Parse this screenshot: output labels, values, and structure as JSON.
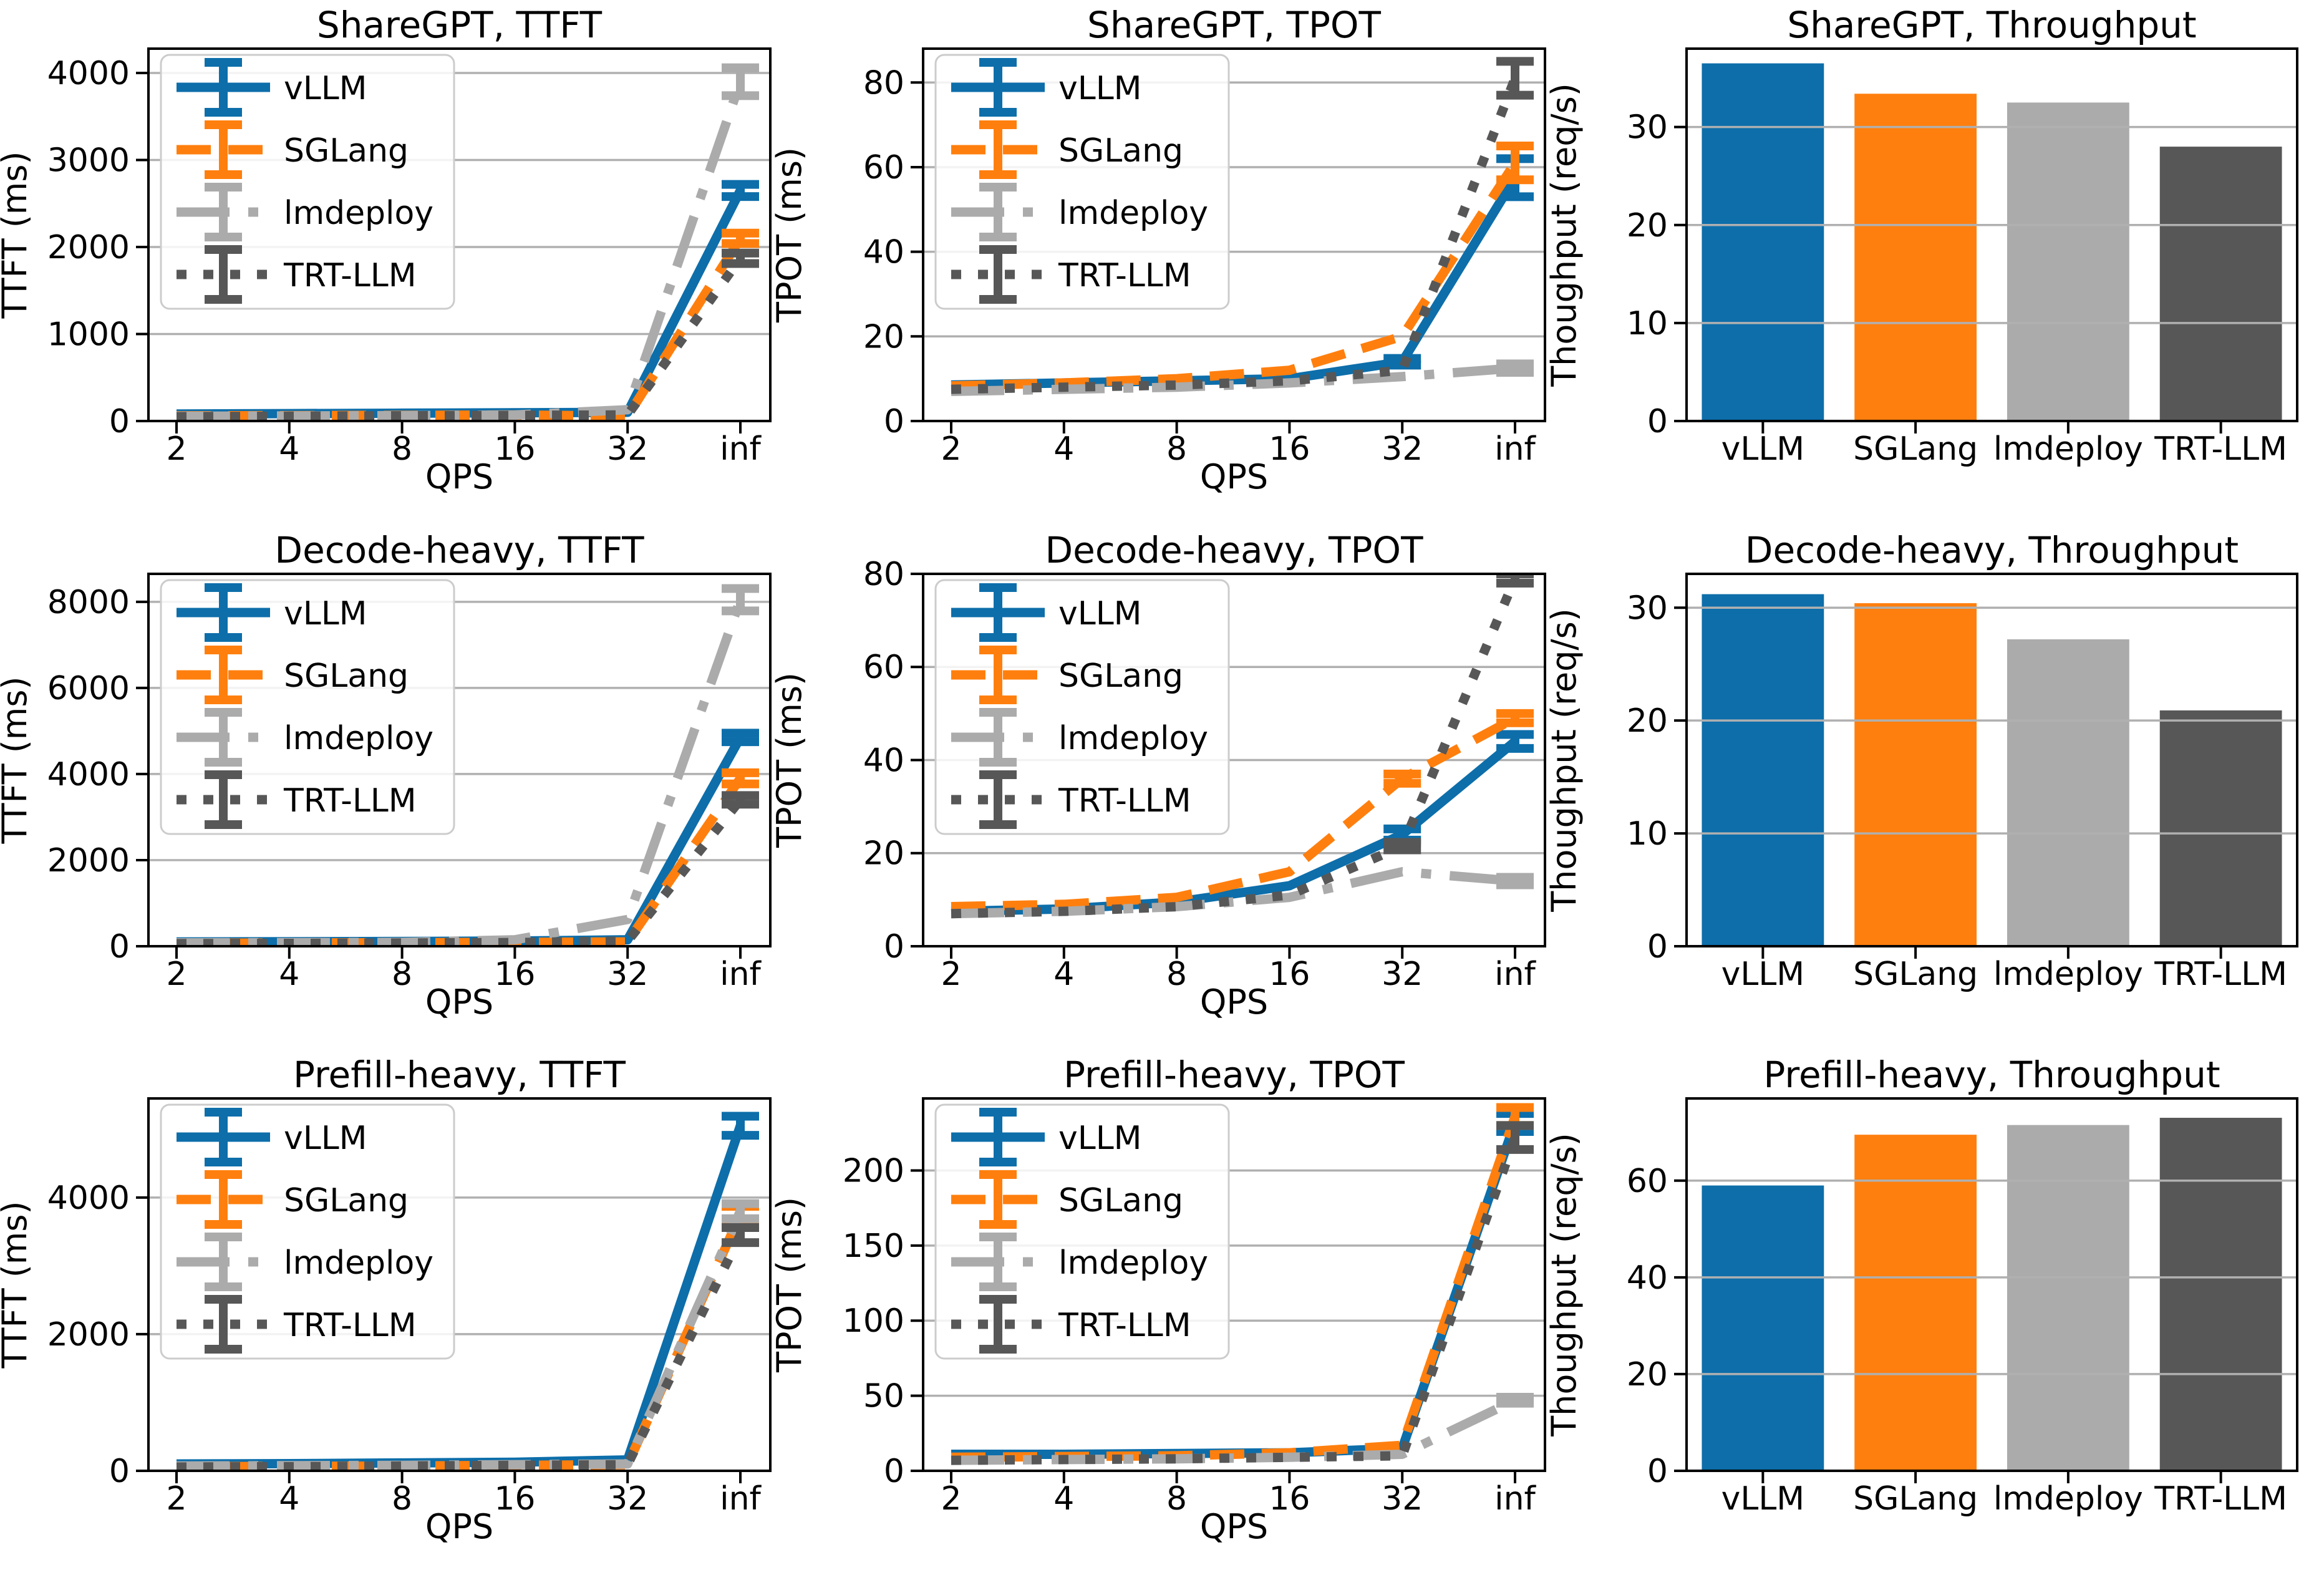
{
  "figure": {
    "background": "#ffffff",
    "grid_color": "#b0b0b0",
    "spine_color": "#000000",
    "legend_border_color": "#cccccc"
  },
  "palette": {
    "vLLM": "#0d6eaa",
    "SGLang": "#ff7f0e",
    "lmdeploy": "#ababab",
    "TRT-LLM": "#575757"
  },
  "series_styles": [
    {
      "name": "vLLM",
      "style": "solid"
    },
    {
      "name": "SGLang",
      "style": "dashed"
    },
    {
      "name": "lmdeploy",
      "style": "dashdot"
    },
    {
      "name": "TRT-LLM",
      "style": "dotted"
    }
  ],
  "chart_data": [
    {
      "type": "line",
      "title": "ShareGPT, TTFT",
      "xlabel": "QPS",
      "ylabel": "TTFT (ms)",
      "x_ticklabels": [
        "2",
        "4",
        "8",
        "16",
        "32",
        "inf"
      ],
      "yticks": [
        0,
        1000,
        2000,
        3000,
        4000
      ],
      "ylim": [
        0,
        4280
      ],
      "legend": true,
      "legend_entries": [
        "vLLM",
        "SGLang",
        "lmdeploy",
        "TRT-LLM"
      ],
      "series": [
        {
          "name": "vLLM",
          "values": [
            80,
            85,
            90,
            95,
            100,
            2650
          ],
          "err": [
            0,
            0,
            0,
            0,
            0,
            70
          ]
        },
        {
          "name": "SGLang",
          "values": [
            60,
            62,
            65,
            70,
            55,
            2100
          ],
          "err": [
            0,
            0,
            0,
            0,
            0,
            60
          ]
        },
        {
          "name": "lmdeploy",
          "values": [
            55,
            58,
            62,
            70,
            130,
            3900
          ],
          "err": [
            0,
            0,
            0,
            0,
            0,
            160
          ]
        },
        {
          "name": "TRT-LLM",
          "values": [
            50,
            55,
            60,
            65,
            70,
            1870
          ],
          "err": [
            0,
            0,
            0,
            0,
            0,
            60
          ]
        }
      ]
    },
    {
      "type": "line",
      "title": "ShareGPT, TPOT",
      "xlabel": "QPS",
      "ylabel": "TPOT (ms)",
      "x_ticklabels": [
        "2",
        "4",
        "8",
        "16",
        "32",
        "inf"
      ],
      "yticks": [
        0,
        20,
        40,
        60,
        80
      ],
      "ylim": [
        0,
        88
      ],
      "legend": true,
      "legend_entries": [
        "vLLM",
        "SGLang",
        "lmdeploy",
        "TRT-LLM"
      ],
      "series": [
        {
          "name": "vLLM",
          "values": [
            8.5,
            9,
            9.5,
            10,
            14,
            57.5
          ],
          "err": [
            0,
            0,
            0,
            0,
            0.8,
            4.5
          ]
        },
        {
          "name": "SGLang",
          "values": [
            8.3,
            9,
            10,
            12,
            20,
            61
          ],
          "err": [
            0,
            0,
            0,
            0,
            0,
            4
          ]
        },
        {
          "name": "lmdeploy",
          "values": [
            7,
            7.5,
            8,
            9,
            10.5,
            12.5
          ],
          "err": [
            0,
            0,
            0,
            0,
            0,
            1
          ]
        },
        {
          "name": "TRT-LLM",
          "values": [
            7.5,
            8,
            8.5,
            9.5,
            12,
            81
          ],
          "err": [
            0,
            0,
            0,
            0,
            0,
            4
          ]
        }
      ]
    },
    {
      "type": "bar",
      "title": "ShareGPT, Throughput",
      "ylabel": "Thoughput (req/s)",
      "categories": [
        "vLLM",
        "SGLang",
        "lmdeploy",
        "TRT-LLM"
      ],
      "values": [
        36.5,
        33.4,
        32.5,
        28.0
      ],
      "yticks": [
        0,
        10,
        20,
        30
      ],
      "ylim": [
        0,
        38
      ]
    },
    {
      "type": "line",
      "title": "Decode-heavy, TTFT",
      "xlabel": "QPS",
      "ylabel": "TTFT (ms)",
      "x_ticklabels": [
        "2",
        "4",
        "8",
        "16",
        "32",
        "inf"
      ],
      "yticks": [
        0,
        2000,
        4000,
        6000,
        8000
      ],
      "ylim": [
        0,
        8650
      ],
      "legend": true,
      "legend_entries": [
        "vLLM",
        "SGLang",
        "lmdeploy",
        "TRT-LLM"
      ],
      "series": [
        {
          "name": "vLLM",
          "values": [
            100,
            105,
            110,
            120,
            150,
            4850
          ],
          "err": [
            0,
            0,
            0,
            0,
            0,
            100
          ]
        },
        {
          "name": "SGLang",
          "values": [
            70,
            75,
            80,
            90,
            100,
            3900
          ],
          "err": [
            0,
            0,
            0,
            0,
            0,
            130
          ]
        },
        {
          "name": "lmdeploy",
          "values": [
            80,
            85,
            90,
            150,
            620,
            8050
          ],
          "err": [
            0,
            0,
            0,
            0,
            0,
            260
          ]
        },
        {
          "name": "TRT-LLM",
          "values": [
            60,
            65,
            75,
            85,
            120,
            3400
          ],
          "err": [
            0,
            0,
            0,
            0,
            0,
            100
          ]
        }
      ]
    },
    {
      "type": "line",
      "title": "Decode-heavy, TPOT",
      "xlabel": "QPS",
      "ylabel": "TPOT (ms)",
      "x_ticklabels": [
        "2",
        "4",
        "8",
        "16",
        "32",
        "inf"
      ],
      "yticks": [
        0,
        20,
        40,
        60,
        80
      ],
      "ylim": [
        0,
        80
      ],
      "legend": true,
      "legend_entries": [
        "vLLM",
        "SGLang",
        "lmdeploy",
        "TRT-LLM"
      ],
      "series": [
        {
          "name": "vLLM",
          "values": [
            7.5,
            8,
            9.5,
            13,
            24,
            44
          ],
          "err": [
            0,
            0,
            0,
            0,
            1.2,
            1.5
          ]
        },
        {
          "name": "SGLang",
          "values": [
            8.5,
            9,
            10.5,
            16,
            36,
            49
          ],
          "err": [
            0,
            0,
            0,
            0,
            1,
            1
          ]
        },
        {
          "name": "lmdeploy",
          "values": [
            7,
            7.5,
            8.5,
            10.5,
            16,
            14
          ],
          "err": [
            0,
            0,
            0,
            0,
            0,
            0.8
          ]
        },
        {
          "name": "TRT-LLM",
          "values": [
            7,
            7.5,
            8.5,
            11,
            21.5,
            79
          ],
          "err": [
            0,
            0,
            0,
            0,
            0.8,
            1
          ]
        }
      ]
    },
    {
      "type": "bar",
      "title": "Decode-heavy, Throughput",
      "ylabel": "Thoughput (req/s)",
      "categories": [
        "vLLM",
        "SGLang",
        "lmdeploy",
        "TRT-LLM"
      ],
      "values": [
        31.2,
        30.4,
        27.2,
        20.9
      ],
      "yticks": [
        0,
        10,
        20,
        30
      ],
      "ylim": [
        0,
        33
      ]
    },
    {
      "type": "line",
      "title": "Prefill-heavy, TTFT",
      "xlabel": "QPS",
      "ylabel": "TTFT (ms)",
      "x_ticklabels": [
        "2",
        "4",
        "8",
        "16",
        "32",
        "inf"
      ],
      "yticks": [
        0,
        2000,
        4000
      ],
      "ylim": [
        0,
        5450
      ],
      "legend": true,
      "legend_entries": [
        "vLLM",
        "SGLang",
        "lmdeploy",
        "TRT-LLM"
      ],
      "series": [
        {
          "name": "vLLM",
          "values": [
            100,
            105,
            115,
            125,
            160,
            5050
          ],
          "err": [
            0,
            0,
            0,
            0,
            0,
            140
          ]
        },
        {
          "name": "SGLang",
          "values": [
            60,
            65,
            70,
            80,
            90,
            3750
          ],
          "err": [
            0,
            0,
            0,
            0,
            0,
            120
          ]
        },
        {
          "name": "lmdeploy",
          "values": [
            70,
            75,
            80,
            90,
            100,
            3800
          ],
          "err": [
            0,
            0,
            0,
            0,
            0,
            110
          ]
        },
        {
          "name": "TRT-LLM",
          "values": [
            55,
            60,
            70,
            80,
            90,
            3450
          ],
          "err": [
            0,
            0,
            0,
            0,
            0,
            110
          ]
        }
      ]
    },
    {
      "type": "line",
      "title": "Prefill-heavy, TPOT",
      "xlabel": "QPS",
      "ylabel": "TPOT (ms)",
      "x_ticklabels": [
        "2",
        "4",
        "8",
        "16",
        "32",
        "inf"
      ],
      "yticks": [
        0,
        50,
        100,
        150,
        200
      ],
      "ylim": [
        0,
        248
      ],
      "legend": true,
      "legend_entries": [
        "vLLM",
        "SGLang",
        "lmdeploy",
        "TRT-LLM"
      ],
      "series": [
        {
          "name": "vLLM",
          "values": [
            11,
            11,
            11.5,
            12,
            15,
            232
          ],
          "err": [
            0,
            0,
            0,
            0,
            0,
            6
          ]
        },
        {
          "name": "SGLang",
          "values": [
            9,
            9.5,
            10,
            12,
            17,
            236
          ],
          "err": [
            0,
            0,
            0,
            0,
            0,
            6
          ]
        },
        {
          "name": "lmdeploy",
          "values": [
            7,
            7.5,
            8,
            9,
            11,
            47
          ],
          "err": [
            0,
            0,
            0,
            0,
            0,
            2
          ]
        },
        {
          "name": "TRT-LLM",
          "values": [
            7,
            7.5,
            8,
            9,
            10,
            222
          ],
          "err": [
            0,
            0,
            0,
            0,
            0,
            8
          ]
        }
      ]
    },
    {
      "type": "bar",
      "title": "Prefill-heavy, Throughput",
      "ylabel": "Thoughput (req/s)",
      "categories": [
        "vLLM",
        "SGLang",
        "lmdeploy",
        "TRT-LLM"
      ],
      "values": [
        59,
        69.5,
        71.5,
        73
      ],
      "yticks": [
        0,
        20,
        40,
        60
      ],
      "ylim": [
        0,
        77
      ]
    }
  ]
}
